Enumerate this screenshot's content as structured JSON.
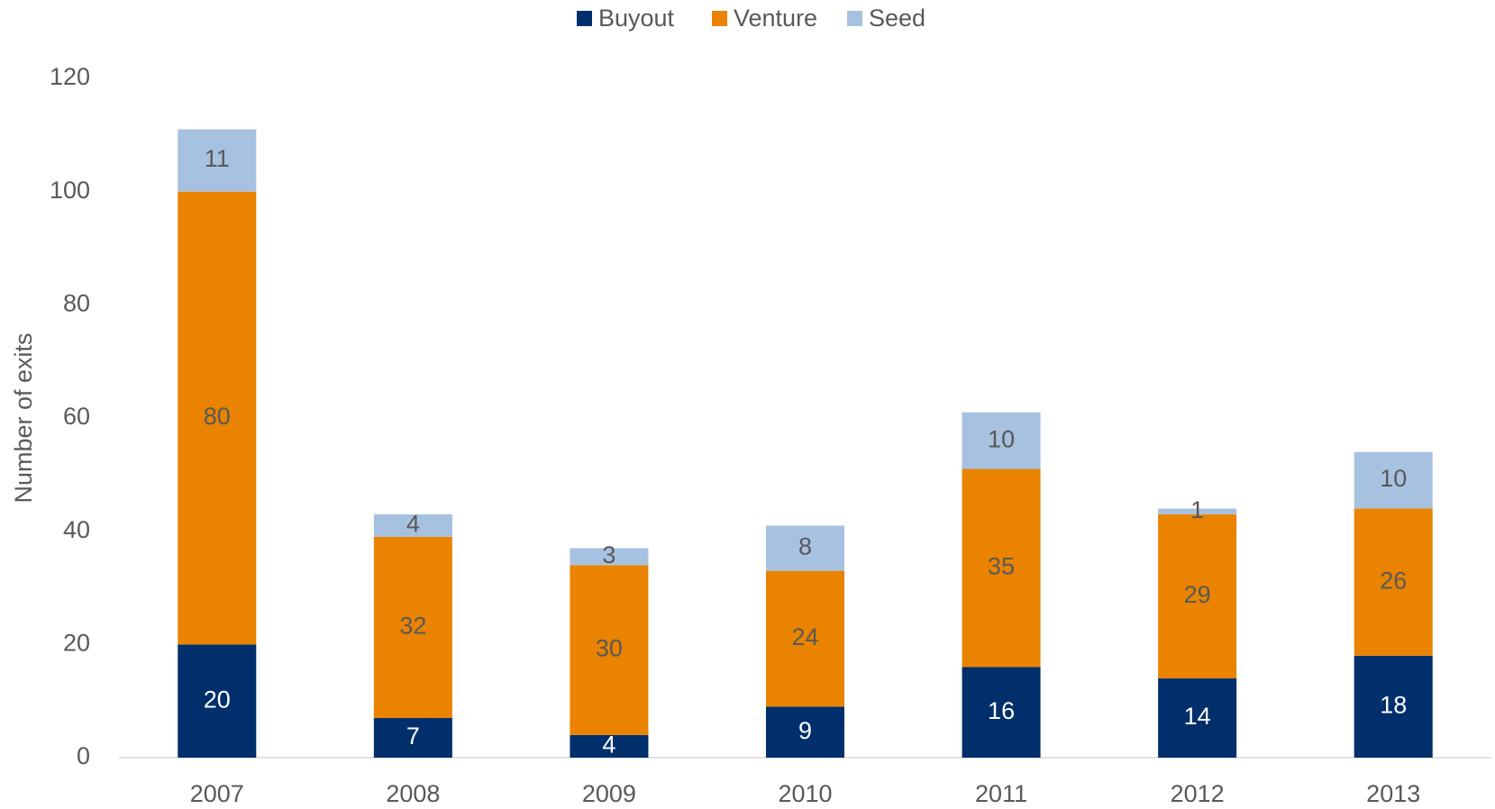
{
  "chart_data": {
    "type": "stacked_bar",
    "categories": [
      "2007",
      "2008",
      "2009",
      "2010",
      "2011",
      "2012",
      "2013"
    ],
    "series": [
      {
        "name": "Buyout",
        "color": "#002f6c",
        "values": [
          20,
          7,
          4,
          9,
          16,
          14,
          18
        ]
      },
      {
        "name": "Venture",
        "color": "#e98300",
        "values": [
          80,
          32,
          30,
          24,
          35,
          29,
          26
        ]
      },
      {
        "name": "Seed",
        "color": "#a7c1e0",
        "values": [
          11,
          4,
          3,
          8,
          10,
          1,
          10
        ]
      }
    ],
    "y_label": "Number of exits",
    "ylim": [
      0,
      120
    ],
    "yticks": [
      0,
      20,
      40,
      60,
      80,
      100,
      120
    ],
    "grid": false,
    "legend": "top"
  }
}
